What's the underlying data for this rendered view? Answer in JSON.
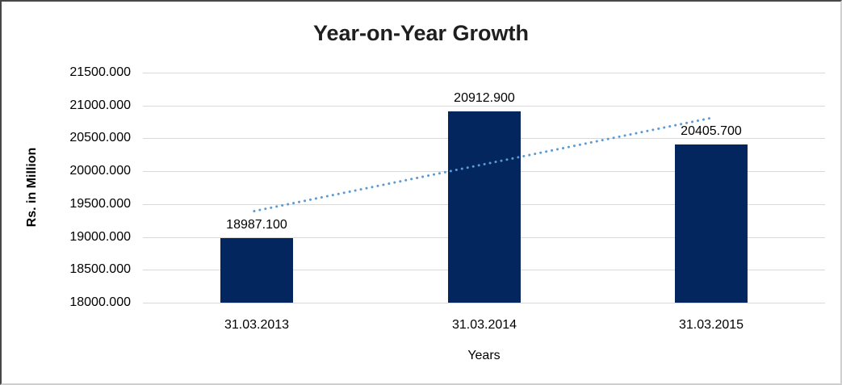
{
  "chart_data": {
    "type": "bar",
    "title": "Year-on-Year Growth",
    "xlabel": "Years",
    "ylabel": "Rs. in Million",
    "categories": [
      "31.03.2013",
      "31.03.2014",
      "31.03.2015"
    ],
    "values": [
      18987.1,
      20912.9,
      20405.7
    ],
    "data_labels": [
      "18987.100",
      "20912.900",
      "20405.700"
    ],
    "ylim": [
      18000,
      21500
    ],
    "ytick_step": 500,
    "ytick_labels": [
      "18000.000",
      "18500.000",
      "19000.000",
      "19500.000",
      "20000.000",
      "20500.000",
      "21000.000",
      "21500.000"
    ],
    "grid": true,
    "legend": "none",
    "colors": {
      "bar": "#04265e",
      "gridline": "#d9d9d9",
      "trendline": "#5b9bd5",
      "text": "#000000",
      "title": "#1f1f1f"
    },
    "trendline": {
      "type": "linear",
      "style": "dotted",
      "color": "#5b9bd5",
      "start_value": 19393,
      "end_value": 20811
    }
  }
}
